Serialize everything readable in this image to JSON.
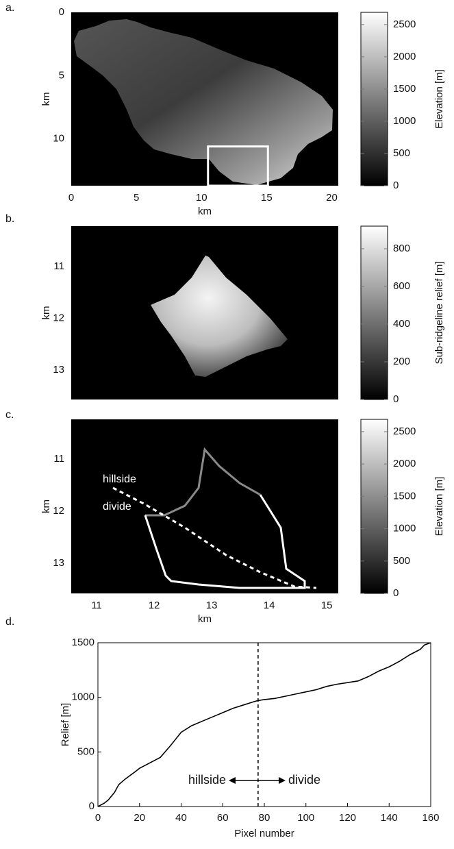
{
  "chart_data": [
    {
      "type": "heatmap",
      "label": "a.",
      "xlabel": "km",
      "ylabel": "km",
      "xlim": [
        0,
        20.5
      ],
      "xticks": [
        0,
        5,
        10,
        15,
        20
      ],
      "ylim": [
        0,
        13.7
      ],
      "yticks": [
        0,
        5,
        10
      ],
      "y_reversed": true,
      "inset_box": {
        "x": [
          10.5,
          15.1
        ],
        "y": [
          10.6,
          13.7
        ]
      },
      "colorbar": {
        "label": "Elevation [m]",
        "lim": [
          0,
          2690
        ],
        "ticks": [
          0,
          500,
          1000,
          1500,
          2000,
          2500
        ]
      }
    },
    {
      "type": "heatmap",
      "label": "b.",
      "ylabel": "km",
      "ylim": [
        10.22,
        13.57
      ],
      "yticks": [
        11,
        12,
        13
      ],
      "y_reversed": true,
      "colorbar": {
        "label": "Sub-ridgeline relief [m]",
        "lim": [
          0,
          920
        ],
        "ticks": [
          0,
          200,
          400,
          600,
          800
        ]
      }
    },
    {
      "type": "heatmap",
      "label": "c.",
      "xlabel": "km",
      "ylabel": "km",
      "xlim": [
        10.56,
        15.2
      ],
      "xticks": [
        11,
        12,
        13,
        14,
        15
      ],
      "ylim": [
        10.24,
        13.58
      ],
      "yticks": [
        11,
        12,
        13
      ],
      "y_reversed": true,
      "annotations": [
        "hillside",
        "divide"
      ],
      "colorbar": {
        "label": "Elevation [m]",
        "lim": [
          0,
          2690
        ],
        "ticks": [
          0,
          500,
          1000,
          1500,
          2000,
          2500
        ]
      }
    },
    {
      "type": "line",
      "label": "d.",
      "xlabel": "Pixel number",
      "ylabel": "Relief [m]",
      "x": [
        0,
        3,
        5,
        8,
        10,
        13,
        18,
        20,
        25,
        30,
        35,
        40,
        45,
        50,
        55,
        60,
        65,
        70,
        75,
        77,
        80,
        85,
        90,
        95,
        100,
        105,
        110,
        115,
        120,
        125,
        130,
        135,
        140,
        145,
        150,
        155,
        157,
        160
      ],
      "values": [
        0,
        30,
        60,
        130,
        200,
        250,
        320,
        350,
        400,
        450,
        560,
        680,
        740,
        780,
        820,
        860,
        900,
        930,
        960,
        970,
        980,
        990,
        1010,
        1030,
        1050,
        1070,
        1100,
        1120,
        1135,
        1150,
        1190,
        1240,
        1280,
        1330,
        1390,
        1440,
        1480,
        1500
      ],
      "color": "#000000",
      "xlim": [
        0,
        160
      ],
      "xticks": [
        0,
        20,
        40,
        60,
        80,
        100,
        120,
        140,
        160
      ],
      "ylim": [
        0,
        1500
      ],
      "yticks": [
        0,
        500,
        1000,
        1500
      ],
      "divider_x": 77,
      "annotations": [
        "hillside",
        "divide"
      ]
    }
  ]
}
